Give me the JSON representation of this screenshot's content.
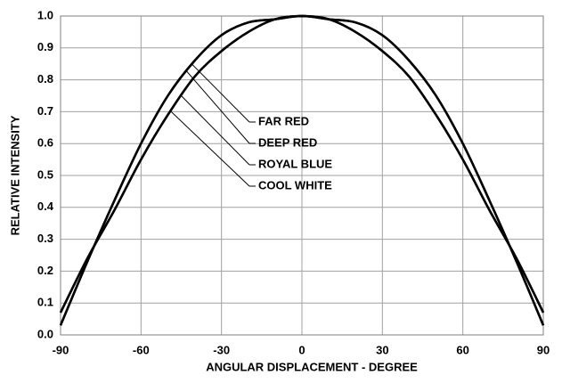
{
  "chart_data": {
    "type": "line",
    "x_label": "ANGULAR DISPLACEMENT - DEGREE",
    "y_label": "RELATIVE INTENSITY",
    "x": [
      -90,
      -80,
      -70,
      -60,
      -50,
      -40,
      -30,
      -20,
      -10,
      0,
      10,
      20,
      30,
      40,
      50,
      60,
      70,
      80,
      90
    ],
    "series": [
      {
        "name": "FAR RED",
        "color": "#000000",
        "values": [
          0.03,
          0.23,
          0.42,
          0.6,
          0.75,
          0.86,
          0.94,
          0.98,
          0.99,
          1.0,
          0.99,
          0.98,
          0.94,
          0.86,
          0.75,
          0.6,
          0.42,
          0.23,
          0.03
        ]
      },
      {
        "name": "DEEP RED",
        "color": "#000000",
        "values": [
          0.03,
          0.23,
          0.42,
          0.6,
          0.75,
          0.86,
          0.94,
          0.98,
          0.99,
          1.0,
          0.99,
          0.98,
          0.94,
          0.86,
          0.75,
          0.6,
          0.42,
          0.23,
          0.03
        ]
      },
      {
        "name": "ROYAL BLUE",
        "color": "#000000",
        "values": [
          0.07,
          0.24,
          0.39,
          0.55,
          0.69,
          0.81,
          0.89,
          0.95,
          0.99,
          1.0,
          0.99,
          0.95,
          0.89,
          0.81,
          0.69,
          0.55,
          0.39,
          0.24,
          0.07
        ]
      },
      {
        "name": "COOL WHITE",
        "color": "#000000",
        "values": [
          0.07,
          0.24,
          0.39,
          0.55,
          0.69,
          0.81,
          0.89,
          0.95,
          0.99,
          1.0,
          0.99,
          0.95,
          0.89,
          0.81,
          0.69,
          0.55,
          0.39,
          0.24,
          0.07
        ]
      }
    ],
    "xlim": [
      -90,
      90
    ],
    "xticks": [
      -90,
      -60,
      -30,
      0,
      30,
      60,
      90
    ],
    "ylim": [
      0,
      1
    ],
    "yticks": [
      {
        "value": 0,
        "label": "0.0"
      },
      0.1,
      0.2,
      0.3,
      0.4,
      0.5,
      0.6,
      0.7,
      0.8,
      0.9,
      {
        "value": 1,
        "label": "1.0"
      }
    ],
    "grid": true
  }
}
